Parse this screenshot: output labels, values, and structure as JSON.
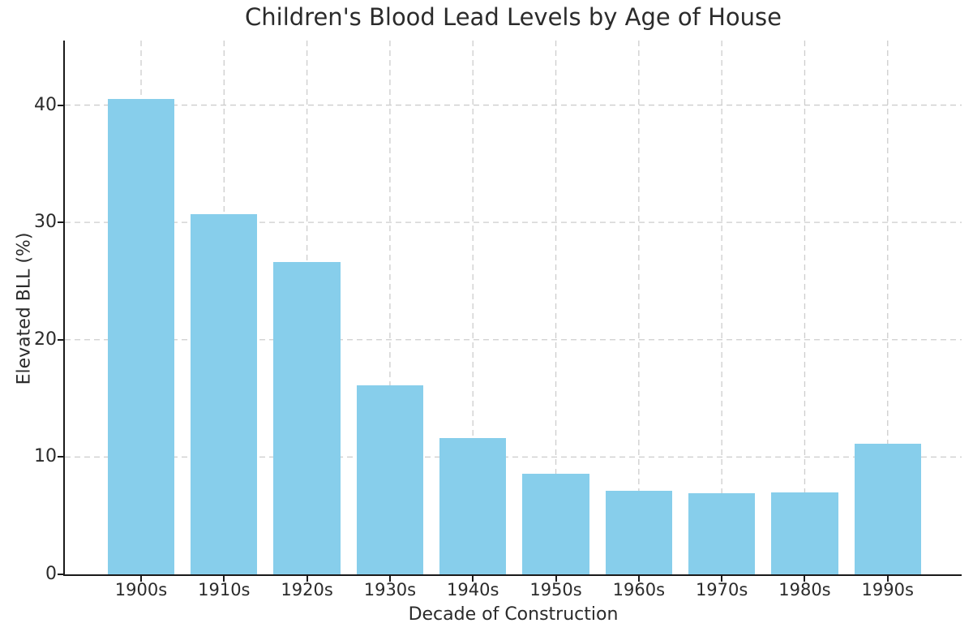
{
  "chart_data": {
    "type": "bar",
    "title": "Children's Blood Lead Levels by Age of House",
    "xlabel": "Decade of Construction",
    "ylabel": "Elevated BLL (%)",
    "categories": [
      "1900s",
      "1910s",
      "1920s",
      "1930s",
      "1940s",
      "1950s",
      "1960s",
      "1970s",
      "1980s",
      "1990s"
    ],
    "values": [
      40.5,
      30.7,
      26.6,
      16.1,
      11.6,
      8.6,
      7.1,
      6.9,
      7.0,
      11.1
    ],
    "yticks": [
      0,
      10,
      20,
      30,
      40
    ],
    "ylim": [
      0,
      45.5
    ],
    "bar_color": "#87CEEB",
    "grid": "both",
    "grid_style": "dashed",
    "grid_color": "#cdcdcd",
    "spine_color": "#1a1a1a",
    "legend": "none"
  }
}
